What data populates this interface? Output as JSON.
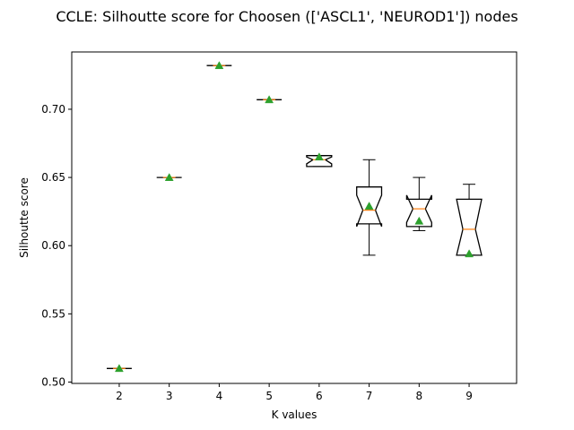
{
  "chart_data": {
    "type": "boxplot",
    "title": "CCLE: Silhoutte score for Choosen (['ASCL1', 'NEUROD1']) nodes",
    "xlabel": "K values",
    "ylabel": "Silhoutte score",
    "ylim": [
      0.499,
      0.742
    ],
    "grid": false,
    "yticks": [
      0.5,
      0.55,
      0.6,
      0.65,
      0.7
    ],
    "ytick_labels": [
      "0.50",
      "0.55",
      "0.60",
      "0.65",
      "0.70"
    ],
    "categories": [
      "2",
      "3",
      "4",
      "5",
      "6",
      "7",
      "8",
      "9"
    ],
    "boxes": [
      {
        "k": "2",
        "whisker_low": 0.51,
        "q1": 0.51,
        "median": 0.51,
        "q3": 0.51,
        "whisker_high": 0.51,
        "mean": 0.51,
        "notch_low": 0.51,
        "notch_high": 0.51
      },
      {
        "k": "3",
        "whisker_low": 0.65,
        "q1": 0.65,
        "median": 0.65,
        "q3": 0.65,
        "whisker_high": 0.65,
        "mean": 0.65,
        "notch_low": 0.65,
        "notch_high": 0.65
      },
      {
        "k": "4",
        "whisker_low": 0.732,
        "q1": 0.732,
        "median": 0.732,
        "q3": 0.732,
        "whisker_high": 0.732,
        "mean": 0.732,
        "notch_low": 0.732,
        "notch_high": 0.732
      },
      {
        "k": "5",
        "whisker_low": 0.707,
        "q1": 0.707,
        "median": 0.707,
        "q3": 0.707,
        "whisker_high": 0.707,
        "mean": 0.707,
        "notch_low": 0.707,
        "notch_high": 0.707
      },
      {
        "k": "6",
        "whisker_low": 0.658,
        "q1": 0.658,
        "median": 0.663,
        "q3": 0.666,
        "whisker_high": 0.666,
        "mean": 0.665,
        "notch_low": 0.66,
        "notch_high": 0.665
      },
      {
        "k": "7",
        "whisker_low": 0.593,
        "q1": 0.616,
        "median": 0.626,
        "q3": 0.643,
        "whisker_high": 0.663,
        "mean": 0.629,
        "notch_low": 0.614,
        "notch_high": 0.637
      },
      {
        "k": "8",
        "whisker_low": 0.611,
        "q1": 0.614,
        "median": 0.627,
        "q3": 0.634,
        "whisker_high": 0.65,
        "mean": 0.618,
        "notch_low": 0.617,
        "notch_high": 0.637
      },
      {
        "k": "9",
        "whisker_low": 0.593,
        "q1": 0.593,
        "median": 0.612,
        "q3": 0.634,
        "whisker_high": 0.645,
        "mean": 0.594,
        "notch_low": 0.593,
        "notch_high": 0.634
      }
    ],
    "colors": {
      "box": "#000000",
      "median": "#ff7f0e",
      "mean": "#2ca02c"
    }
  }
}
